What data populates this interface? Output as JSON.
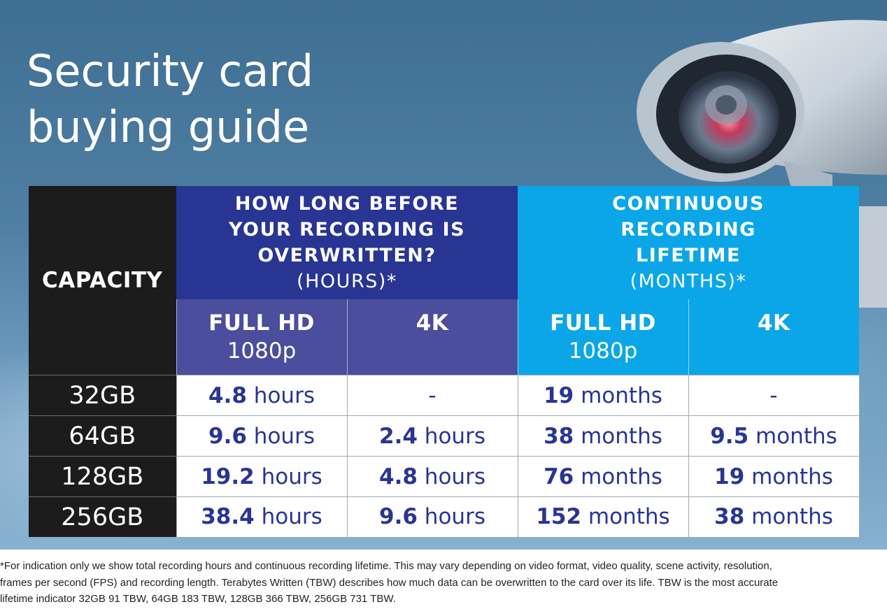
{
  "title_lines": [
    "Security card",
    "buying guide"
  ],
  "table": {
    "capacity_header": "CAPACITY",
    "group_hours": {
      "question": [
        "HOW LONG BEFORE",
        "YOUR RECORDING IS",
        "OVERWRITTEN?"
      ],
      "unit": "(HOURS)*"
    },
    "group_months": {
      "question": [
        "CONTINUOUS",
        "RECORDING",
        "LIFETIME"
      ],
      "unit": "(MONTHS)*"
    },
    "sub_headers": [
      {
        "line1": "FULL HD",
        "line2": "1080p"
      },
      {
        "line1": "4K",
        "line2": ""
      },
      {
        "line1": "FULL HD",
        "line2": "1080p"
      },
      {
        "line1": "4K",
        "line2": ""
      }
    ],
    "rows": [
      {
        "capacity": "32GB",
        "cells": [
          {
            "num": "4.8",
            "unit": " hours"
          },
          {
            "num": "",
            "unit": "-"
          },
          {
            "num": "19",
            "unit": " months"
          },
          {
            "num": "",
            "unit": "-"
          }
        ]
      },
      {
        "capacity": "64GB",
        "cells": [
          {
            "num": "9.6",
            "unit": " hours"
          },
          {
            "num": "2.4",
            "unit": " hours"
          },
          {
            "num": "38",
            "unit": " months"
          },
          {
            "num": "9.5",
            "unit": " months"
          }
        ]
      },
      {
        "capacity": "128GB",
        "cells": [
          {
            "num": "19.2",
            "unit": " hours"
          },
          {
            "num": "4.8",
            "unit": " hours"
          },
          {
            "num": "76",
            "unit": " months"
          },
          {
            "num": "19",
            "unit": " months"
          }
        ]
      },
      {
        "capacity": "256GB",
        "cells": [
          {
            "num": "38.4",
            "unit": " hours"
          },
          {
            "num": "9.6",
            "unit": " hours"
          },
          {
            "num": "152",
            "unit": " months"
          },
          {
            "num": "38",
            "unit": " months"
          }
        ]
      }
    ]
  },
  "footnote_lines": [
    "*For indication only we show total recording hours and continuous recording lifetime. This may vary depending on video format, video quality, scene activity, resolution,",
    "frames per second (FPS) and recording length. Terabytes Written (TBW) describes how much data can be overwritten to the card over its life. TBW is the most accurate",
    "lifetime indicator 32GB 91 TBW, 64GB 183 TBW, 128GB 366 TBW, 256GB 731 TBW."
  ],
  "colors": {
    "hours_header": "#283593",
    "hours_subheader": "#4a4e9c",
    "months_header": "#0aa6e8",
    "capacity_column": "#1c1c1c",
    "value_text": "#283593"
  },
  "icons": {
    "background_photo": "security-camera-illustration"
  }
}
